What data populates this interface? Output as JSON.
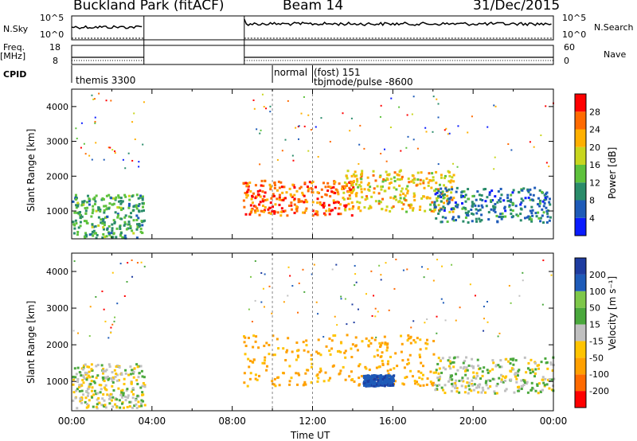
{
  "header": {
    "station": "Buckland Park (fitACF)",
    "beam": "Beam 14",
    "date": "31/Dec/2015"
  },
  "strip_labels": {
    "nsky": "N.Sky",
    "nsky_ticks": [
      "10^5",
      "10^0"
    ],
    "nsearch": "N.Search",
    "nsearch_ticks": [
      "10^5",
      "10^0"
    ],
    "freq_label_1": "Freq.",
    "freq_label_2": "[MHz]",
    "freq_ticks": [
      "18",
      "8"
    ],
    "nave": "Nave",
    "nave_ticks": [
      "60",
      "0"
    ],
    "cpid": "CPID"
  },
  "cpid_annotations": {
    "a": "themis 3300",
    "b": "normal",
    "c": "(fost)  151",
    "d": "tbjmode/pulse  -8600"
  },
  "x_axis": {
    "title": "Time UT",
    "ticks": [
      "00:00",
      "04:00",
      "08:00",
      "12:00",
      "16:00",
      "20:00",
      "00:00"
    ]
  },
  "chart_data": [
    {
      "type": "heatmap",
      "title": "",
      "ylabel": "Slant Range [km]",
      "yticks": [
        1000,
        2000,
        3000,
        4000
      ],
      "ylim": [
        200,
        4500
      ],
      "xlim_hours": [
        0,
        24
      ],
      "colorbar": {
        "label": "Power [dB]",
        "ticks": [
          4,
          8,
          12,
          16,
          20,
          24,
          28
        ],
        "colors": [
          "#0a1cff",
          "#1e5bb8",
          "#2a8c6a",
          "#5ec23c",
          "#c8d61e",
          "#ffb000",
          "#ff6a00",
          "#ff0000"
        ]
      },
      "features": [
        {
          "start": 0.0,
          "end": 3.6,
          "r0": 250,
          "r1": 1500,
          "level": 12
        },
        {
          "start": 8.5,
          "end": 14.0,
          "r0": 900,
          "r1": 1900,
          "level": 26
        },
        {
          "start": 13.5,
          "end": 19.0,
          "r0": 1000,
          "r1": 2200,
          "level": 20
        },
        {
          "start": 18.0,
          "end": 23.8,
          "r0": 700,
          "r1": 1700,
          "level": 8
        }
      ]
    },
    {
      "type": "heatmap",
      "title": "",
      "ylabel": "Slant Range [km]",
      "yticks": [
        1000,
        2000,
        3000,
        4000
      ],
      "ylim": [
        200,
        4500
      ],
      "xlim_hours": [
        0,
        24
      ],
      "colorbar": {
        "label": "Velocity [m s⁻¹]",
        "ticks": [
          -200,
          -100,
          -50,
          -15,
          15,
          50,
          100,
          200
        ],
        "colors": [
          "#ff0000",
          "#ff6a00",
          "#ffa000",
          "#ffc400",
          "#c0c0c0",
          "#4aa83c",
          "#7ec84a",
          "#1e5bb8",
          "#1e3ca0"
        ]
      },
      "features": [
        {
          "start": 0.0,
          "end": 3.6,
          "r0": 300,
          "r1": 1500,
          "velocity": 0
        },
        {
          "start": 8.5,
          "end": 18.0,
          "r0": 900,
          "r1": 2300,
          "velocity": -60
        },
        {
          "start": 14.5,
          "end": 16.0,
          "r0": 900,
          "r1": 1200,
          "velocity": 180
        },
        {
          "start": 18.0,
          "end": 24.0,
          "r0": 700,
          "r1": 1700,
          "velocity": 5
        }
      ]
    }
  ]
}
